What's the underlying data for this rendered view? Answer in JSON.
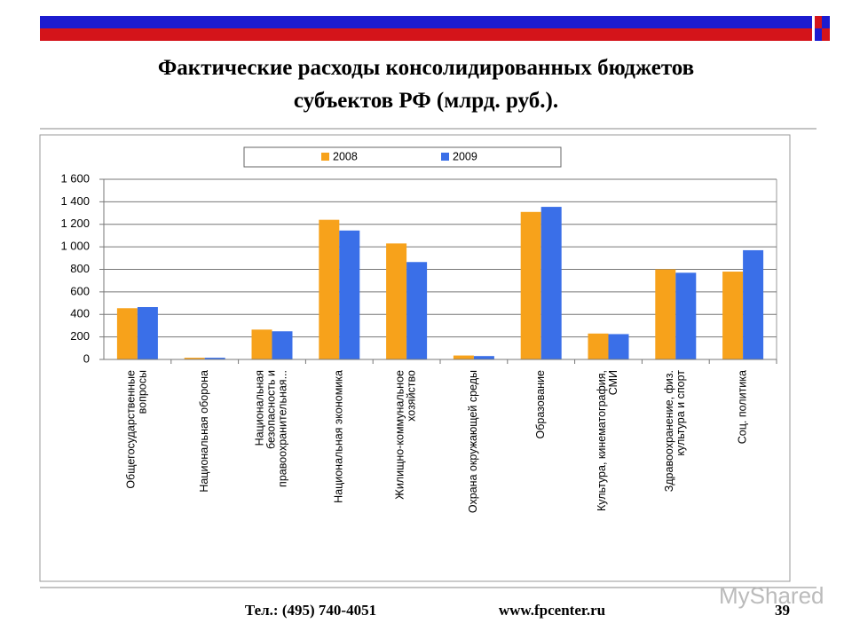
{
  "chart_data": {
    "type": "bar",
    "title": "Фактические расходы консолидированных бюджетов\nсубъектов РФ (млрд. руб.).",
    "categories": [
      "Общегосударственные\nвопросы",
      "Национальная оборона",
      "Национальная\nбезопасность и\nправоохранительная...",
      "Национальная экономика",
      "Жилищно-коммунальное\nхозяйство",
      "Охрана окружающей среды",
      "Образование",
      "Культура, кинематография,\nСМИ",
      "Здравоохранение, физ.\nкультура и спорт",
      "Соц. политика"
    ],
    "series": [
      {
        "name": "2008",
        "color": "#f7a21b",
        "values": [
          455,
          15,
          265,
          1240,
          1030,
          35,
          1310,
          230,
          800,
          780
        ]
      },
      {
        "name": "2009",
        "color": "#3a6fe8",
        "values": [
          465,
          15,
          250,
          1145,
          865,
          30,
          1355,
          225,
          770,
          970
        ]
      }
    ],
    "ylim": [
      0,
      1600
    ],
    "yticks": [
      0,
      200,
      400,
      600,
      800,
      {
        "value": 1000,
        "label": "1 000"
      },
      {
        "value": 1200,
        "label": "1 200"
      },
      {
        "value": 1400,
        "label": "1 400"
      },
      {
        "value": 1600,
        "label": "1 600"
      }
    ],
    "grid": true,
    "legend": "top"
  },
  "footer": {
    "phone": "Тел.: (495) 740-4051",
    "site": "www.fpcenter.ru",
    "page": "39",
    "watermark": "MyShared"
  }
}
